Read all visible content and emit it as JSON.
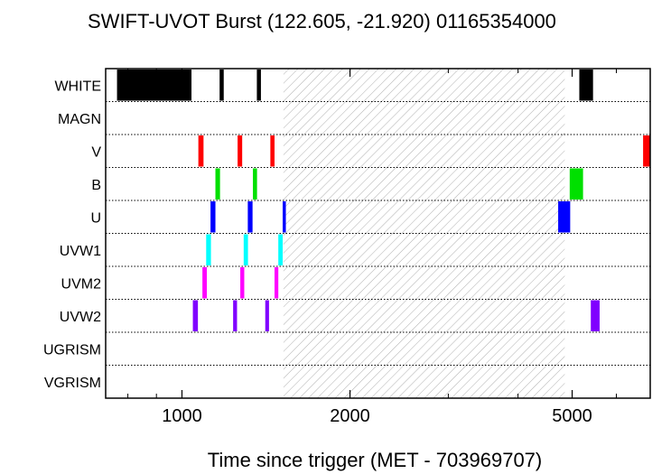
{
  "chart_data": {
    "type": "timeline",
    "title": "SWIFT-UVOT Burst (122.605, -21.920) 01165354000",
    "xlabel": "Time since trigger (MET - 703969707)",
    "ylabel": "",
    "xscale": "log",
    "xlim": [
      730,
      6900
    ],
    "x_major_ticks": [
      1000,
      2000,
      5000
    ],
    "x_minor_ticks": [
      800,
      900,
      3000,
      4000,
      6000
    ],
    "filters": [
      "WHITE",
      "MAGN",
      "V",
      "B",
      "U",
      "UVW1",
      "UVM2",
      "UVW2",
      "UGRISM",
      "VGRISM"
    ],
    "row_separators": "dotted",
    "gap_region": {
      "pattern": "diagonal hatch",
      "x_start": 1520,
      "x_end": 4850
    },
    "colors": {
      "WHITE": "#000000",
      "V": "#ff0000",
      "B": "#00e000",
      "U": "#0000ff",
      "UVW1": "#00ffff",
      "UVM2": "#ff00ff",
      "UVW2": "#8000ff",
      "hatch": "#b0b0b0"
    },
    "exposures": [
      {
        "filter": "WHITE",
        "start": 765,
        "end": 1040
      },
      {
        "filter": "WHITE",
        "start": 1168,
        "end": 1188
      },
      {
        "filter": "WHITE",
        "start": 1362,
        "end": 1385
      },
      {
        "filter": "WHITE",
        "start": 5150,
        "end": 5450
      },
      {
        "filter": "V",
        "start": 1070,
        "end": 1093
      },
      {
        "filter": "V",
        "start": 1258,
        "end": 1282
      },
      {
        "filter": "V",
        "start": 1440,
        "end": 1465
      },
      {
        "filter": "V",
        "start": 6700,
        "end": 6900
      },
      {
        "filter": "B",
        "start": 1148,
        "end": 1170
      },
      {
        "filter": "B",
        "start": 1340,
        "end": 1363
      },
      {
        "filter": "B",
        "start": 4950,
        "end": 5230
      },
      {
        "filter": "U",
        "start": 1125,
        "end": 1148
      },
      {
        "filter": "U",
        "start": 1312,
        "end": 1338
      },
      {
        "filter": "U",
        "start": 1515,
        "end": 1535
      },
      {
        "filter": "U",
        "start": 4720,
        "end": 4960
      },
      {
        "filter": "UVW1",
        "start": 1105,
        "end": 1127
      },
      {
        "filter": "UVW1",
        "start": 1290,
        "end": 1313
      },
      {
        "filter": "UVW1",
        "start": 1488,
        "end": 1515
      },
      {
        "filter": "UVM2",
        "start": 1088,
        "end": 1108
      },
      {
        "filter": "UVM2",
        "start": 1272,
        "end": 1293
      },
      {
        "filter": "UVM2",
        "start": 1465,
        "end": 1488
      },
      {
        "filter": "UVW2",
        "start": 1046,
        "end": 1068
      },
      {
        "filter": "UVW2",
        "start": 1235,
        "end": 1255
      },
      {
        "filter": "UVW2",
        "start": 1410,
        "end": 1432
      },
      {
        "filter": "UVW2",
        "start": 5400,
        "end": 5600
      }
    ]
  }
}
